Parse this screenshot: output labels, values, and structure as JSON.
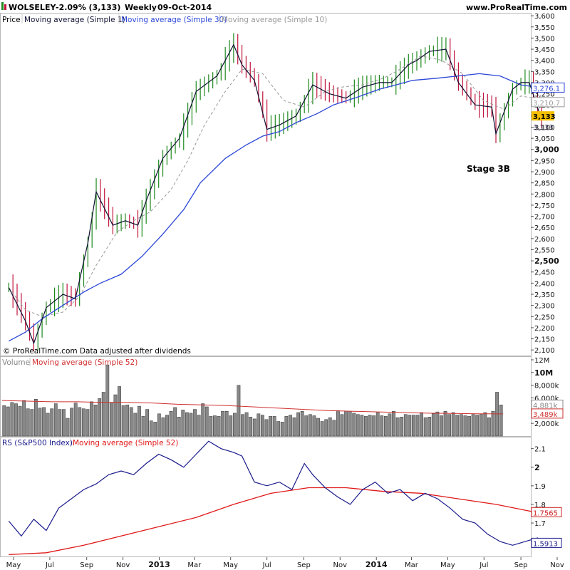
{
  "header": {
    "symbol": "WOLSELEY",
    "change": "-2.09% (3,133)",
    "period": "Weekly",
    "date": "09-Oct-2014",
    "site": "www.ProRealTime.com"
  },
  "price_panel": {
    "legend": [
      "Price",
      "Moving average (Simple 1)",
      "Moving average (Simple 30)",
      "Moving average (Simple 10)"
    ],
    "copyright": "© ProRealTime.com  Data adjusted after dividends",
    "annotation": "Stage 3B",
    "axis_ticks": [
      "3,600",
      "3,550",
      "3,500",
      "3,450",
      "3,400",
      "3,350",
      "3,300",
      "3,250",
      "3,200",
      "3,150",
      "3,100",
      "3,050",
      "3,000",
      "2,950",
      "2,900",
      "2,850",
      "2,800",
      "2,750",
      "2,700",
      "2,650",
      "2,600",
      "2,550",
      "2,500",
      "2,450",
      "2,400",
      "2,350",
      "2,300",
      "2,250",
      "2,200",
      "2,150",
      "2,100"
    ],
    "tags": [
      {
        "text": "3,276.1",
        "color": "#2b47d8",
        "style": "blue"
      },
      {
        "text": "3,210.7",
        "color": "#999999",
        "style": "gray"
      },
      {
        "text": "3,133",
        "color": "#f5c000",
        "style": "yellow"
      },
      {
        "text": "3,133",
        "color": "#222244",
        "style": "plain"
      }
    ]
  },
  "volume_panel": {
    "legend": [
      "Volume",
      "Moving average (Simple 52)"
    ],
    "axis_ticks": [
      "12M",
      "10M",
      "8,000k",
      "6,000k",
      "4,000k",
      "2,000k"
    ],
    "tags": [
      {
        "text": "4,881k",
        "color": "#888888"
      },
      {
        "text": "3,489k",
        "color": "#d03030"
      }
    ]
  },
  "rs_panel": {
    "legend": [
      "RS (S&P500 Index)",
      "Moving average (Simple 52)"
    ],
    "axis_ticks": [
      "2.1",
      "2",
      "1.9",
      "1.8",
      "1.7",
      "1.6"
    ],
    "tags": [
      {
        "text": "1.7565",
        "color": "#d02020"
      },
      {
        "text": "1.5913",
        "color": "#1a1a8c"
      }
    ]
  },
  "x_axis": {
    "labels": [
      "May",
      "Jul",
      "Sep",
      "Nov",
      "2013",
      "Mar",
      "May",
      "Jul",
      "Sep",
      "Nov",
      "2014",
      "Mar",
      "May",
      "Jul",
      "Sep",
      "Nov"
    ]
  },
  "colors": {
    "up_bar": "#1e8a1e",
    "down_bar": "#c0143c",
    "ma1": "#111133",
    "ma30": "#2b47d8",
    "ma10": "#999999",
    "volume_bar": "#888888",
    "volume_ma": "#d03030",
    "rs_line": "#1a1a8c",
    "rs_ma": "#e01818"
  },
  "chart_data": [
    {
      "type": "line",
      "title": "WOLSELEY",
      "frequency": "Weekly",
      "x_range": [
        "2012-05-01",
        "2014-11-10"
      ],
      "ylim": [
        2075,
        3610
      ],
      "grid": false,
      "series": [
        {
          "name": "Moving average (Simple 1)",
          "x": [
            "2012-04-23",
            "2012-05-21",
            "2012-06-04",
            "2012-06-25",
            "2012-07-23",
            "2012-08-13",
            "2012-09-03",
            "2012-09-17",
            "2012-10-15",
            "2012-11-05",
            "2012-11-26",
            "2012-12-10",
            "2013-01-07",
            "2013-02-04",
            "2013-03-04",
            "2013-04-08",
            "2013-05-06",
            "2013-05-20",
            "2013-06-10",
            "2013-07-01",
            "2013-07-22",
            "2013-08-19",
            "2013-09-16",
            "2013-10-14",
            "2013-11-11",
            "2013-12-09",
            "2014-01-06",
            "2014-01-27",
            "2014-02-24",
            "2014-03-10",
            "2014-03-31",
            "2014-04-28",
            "2014-05-19",
            "2014-06-16",
            "2014-07-14",
            "2014-07-21",
            "2014-08-18",
            "2014-09-01",
            "2014-09-15",
            "2014-10-06"
          ],
          "y": [
            2380,
            2230,
            2130,
            2290,
            2350,
            2330,
            2580,
            2810,
            2660,
            2680,
            2660,
            2770,
            2960,
            3050,
            3260,
            3330,
            3470,
            3380,
            3310,
            3090,
            3110,
            3150,
            3290,
            3250,
            3230,
            3280,
            3300,
            3300,
            3380,
            3400,
            3440,
            3450,
            3300,
            3200,
            3190,
            3070,
            3270,
            3300,
            3300,
            3133
          ]
        },
        {
          "name": "Moving average (Simple 30)",
          "x": [
            "2012-04-23",
            "2012-05-21",
            "2012-06-18",
            "2012-07-23",
            "2012-08-27",
            "2012-09-24",
            "2012-10-29",
            "2012-12-03",
            "2013-01-07",
            "2013-02-11",
            "2013-03-11",
            "2013-04-22",
            "2013-05-27",
            "2013-06-24",
            "2013-07-22",
            "2013-08-19",
            "2013-09-23",
            "2013-10-21",
            "2013-11-25",
            "2014-01-06",
            "2014-02-03",
            "2014-03-03",
            "2014-04-14",
            "2014-05-19",
            "2014-06-23",
            "2014-07-28",
            "2014-09-01",
            "2014-10-06"
          ],
          "y": [
            2140,
            2180,
            2240,
            2300,
            2360,
            2400,
            2440,
            2520,
            2620,
            2730,
            2850,
            2960,
            3020,
            3060,
            3080,
            3120,
            3160,
            3200,
            3230,
            3270,
            3290,
            3310,
            3320,
            3330,
            3340,
            3330,
            3290,
            3276
          ]
        },
        {
          "name": "Moving average (Simple 10)",
          "x": [
            "2012-04-23",
            "2012-05-21",
            "2012-06-18",
            "2012-07-23",
            "2012-08-20",
            "2012-09-17",
            "2012-10-22",
            "2012-11-19",
            "2012-12-17",
            "2013-01-21",
            "2013-02-18",
            "2013-03-18",
            "2013-04-22",
            "2013-05-20",
            "2013-06-24",
            "2013-07-29",
            "2013-09-02",
            "2013-10-07",
            "2013-11-04",
            "2013-12-09",
            "2014-01-13",
            "2014-02-10",
            "2014-03-17",
            "2014-04-21",
            "2014-05-26",
            "2014-06-30",
            "2014-08-04",
            "2014-09-01",
            "2014-09-22",
            "2014-10-06"
          ],
          "y": [
            2380,
            2280,
            2250,
            2270,
            2340,
            2480,
            2630,
            2680,
            2720,
            2820,
            2950,
            3110,
            3260,
            3360,
            3340,
            3220,
            3190,
            3260,
            3280,
            3290,
            3320,
            3360,
            3420,
            3400,
            3340,
            3220,
            3180,
            3240,
            3230,
            3211
          ]
        }
      ]
    },
    {
      "type": "bar",
      "title": "Volume",
      "unit": "shares",
      "ylim": [
        0,
        12000000
      ],
      "series": [
        {
          "name": "Volume",
          "values": [
            4800000,
            4600000,
            5300000,
            5100000,
            4700000,
            5600000,
            4300000,
            4200000,
            5800000,
            4400000,
            4500000,
            3600000,
            4300000,
            5100000,
            4200000,
            4200000,
            2800000,
            4400000,
            5200000,
            4500000,
            4300000,
            4200000,
            5400000,
            4900000,
            5900000,
            6900000,
            11200000,
            5300000,
            6500000,
            7800000,
            4800000,
            4900000,
            4500000,
            3600000,
            4700000,
            3100000,
            4200000,
            2400000,
            2200000,
            3500000,
            2900000,
            3300000,
            3900000,
            4500000,
            3000000,
            4100000,
            3700000,
            3600000,
            4200000,
            3300000,
            5100000,
            4600000,
            3100000,
            3200000,
            3100000,
            3900000,
            3900000,
            3200000,
            3600000,
            8000000,
            3400000,
            3700000,
            3000000,
            2700000,
            3500000,
            3300000,
            2600000,
            3100000,
            3100000,
            2300000,
            2200000,
            3100000,
            3300000,
            2900000,
            3700000,
            3900000,
            3200000,
            3400000,
            3200000,
            2800000,
            2300000,
            2600000,
            2900000,
            2500000,
            4000000,
            3400000,
            3900000,
            3900000,
            3600000,
            3400000,
            3300000,
            3100000,
            3300000,
            3200000,
            3700000,
            3200000,
            3100000,
            3500000,
            3900000,
            2900000,
            3000000,
            3400000,
            3300000,
            3300000,
            3300000,
            3700000,
            2900000,
            3000000,
            3500000,
            3800000,
            3200000,
            3900000,
            3400000,
            3700000,
            3300000,
            3400000,
            3200000,
            3100000,
            3400000,
            3300000,
            3400000,
            3700000,
            2900000,
            3900000,
            6900000,
            4900000
          ]
        },
        {
          "name": "Moving average (Simple 52)",
          "values": [
            5600000,
            5500000,
            5400000,
            5400000,
            5300000,
            5300000,
            5200000,
            5000000,
            4900000,
            4800000,
            4600000,
            4400000,
            4200000,
            4000000,
            3900000,
            3800000,
            3700000,
            3600000,
            3550000,
            3500000,
            3489000
          ]
        }
      ]
    },
    {
      "type": "line",
      "title": "RS (S&P500 Index)",
      "ylim": [
        1.52,
        2.16
      ],
      "series": [
        {
          "name": "RS (S&P500 Index)",
          "x": [
            "2012-04-23",
            "2012-05-14",
            "2012-06-04",
            "2012-06-25",
            "2012-07-16",
            "2012-08-06",
            "2012-08-27",
            "2012-09-17",
            "2012-10-08",
            "2012-10-29",
            "2012-11-19",
            "2012-12-10",
            "2012-12-31",
            "2013-01-21",
            "2013-02-11",
            "2013-03-04",
            "2013-03-25",
            "2013-04-15",
            "2013-05-06",
            "2013-05-20",
            "2013-06-10",
            "2013-07-01",
            "2013-07-22",
            "2013-08-12",
            "2013-09-02",
            "2013-09-16",
            "2013-10-07",
            "2013-10-28",
            "2013-11-18",
            "2013-12-09",
            "2013-12-30",
            "2014-01-20",
            "2014-02-10",
            "2014-03-03",
            "2014-03-24",
            "2014-04-14",
            "2014-05-05",
            "2014-05-26",
            "2014-06-16",
            "2014-07-07",
            "2014-07-28",
            "2014-08-18",
            "2014-09-08",
            "2014-09-29",
            "2014-10-06"
          ],
          "y": [
            1.71,
            1.63,
            1.72,
            1.66,
            1.78,
            1.83,
            1.88,
            1.91,
            1.96,
            1.98,
            1.96,
            2.02,
            2.07,
            2.04,
            2.0,
            2.07,
            2.14,
            2.1,
            2.08,
            2.06,
            1.92,
            1.9,
            1.92,
            1.88,
            2.02,
            1.96,
            1.89,
            1.84,
            1.8,
            1.88,
            1.92,
            1.86,
            1.88,
            1.82,
            1.86,
            1.83,
            1.78,
            1.72,
            1.7,
            1.64,
            1.6,
            1.58,
            1.6,
            1.62,
            1.59
          ]
        },
        {
          "name": "Moving average (Simple 52)",
          "x": [
            "2012-04-23",
            "2012-06-25",
            "2012-08-27",
            "2012-10-29",
            "2012-12-31",
            "2013-03-04",
            "2013-05-06",
            "2013-07-08",
            "2013-09-09",
            "2013-11-11",
            "2014-01-13",
            "2014-03-17",
            "2014-05-19",
            "2014-07-21",
            "2014-09-22",
            "2014-10-06"
          ],
          "y": [
            1.53,
            1.54,
            1.58,
            1.63,
            1.68,
            1.73,
            1.8,
            1.86,
            1.89,
            1.89,
            1.87,
            1.86,
            1.83,
            1.8,
            1.76,
            1.7565
          ]
        }
      ]
    }
  ]
}
